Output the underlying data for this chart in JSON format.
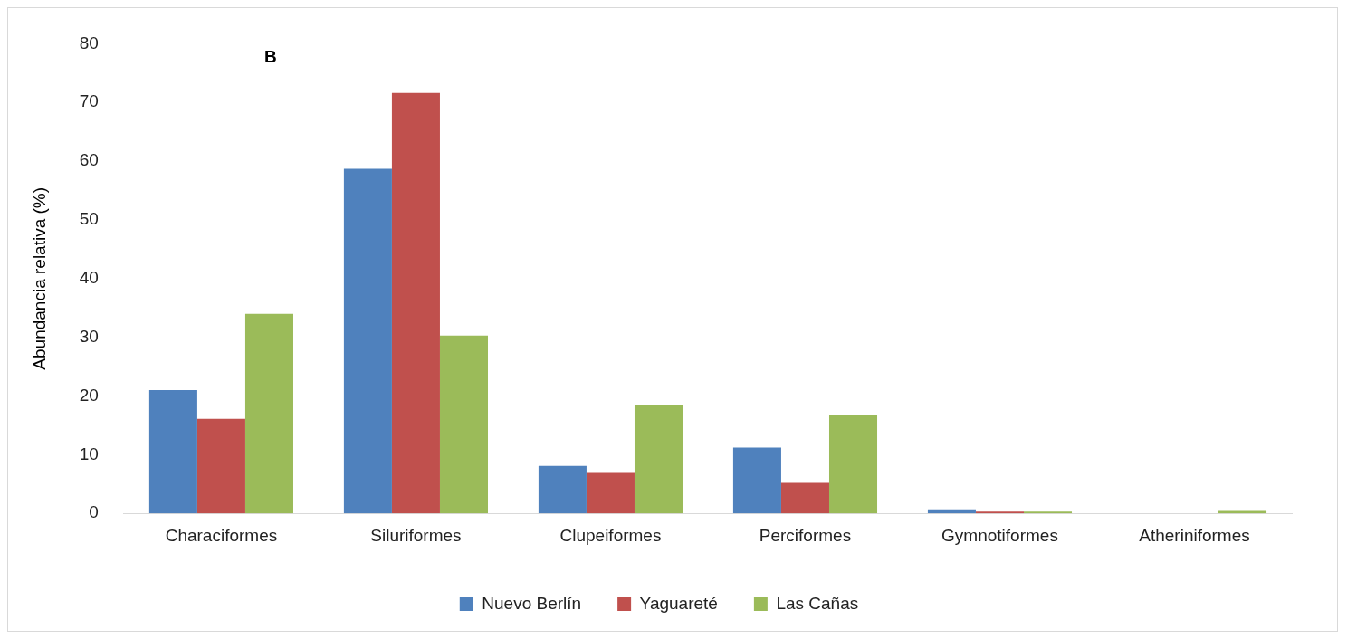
{
  "chart_data": {
    "type": "bar",
    "ylabel": "Abundancia relativa (%)",
    "annotations": [
      "B"
    ],
    "categories": [
      "Characiformes",
      "Siluriformes",
      "Clupeiformes",
      "Perciformes",
      "Gymnotiformes",
      "Atheriniformes"
    ],
    "series": [
      {
        "name": "Nuevo Berlín",
        "color": "#4f81bd",
        "values": [
          21.0,
          58.7,
          8.1,
          11.2,
          0.7,
          null
        ]
      },
      {
        "name": "Yaguareté",
        "color": "#c0504d",
        "values": [
          16.1,
          71.6,
          6.9,
          5.2,
          0.1,
          null
        ]
      },
      {
        "name": "Las Cañas",
        "color": "#9bbb59",
        "values": [
          34.0,
          30.3,
          18.4,
          16.7,
          0.1,
          0.4
        ]
      }
    ],
    "ylim": [
      0,
      80
    ],
    "yticks": [
      0,
      10,
      20,
      30,
      40,
      50,
      60,
      70,
      80
    ],
    "grid": false,
    "legend": "bottom"
  }
}
